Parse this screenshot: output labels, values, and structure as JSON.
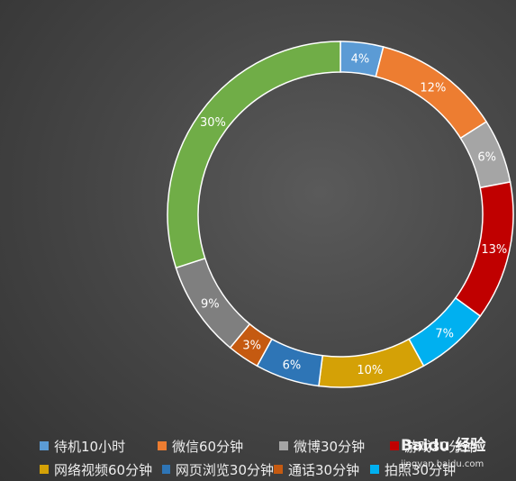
{
  "chart_data": {
    "type": "pie",
    "donut": true,
    "labels": [
      "待机10小时",
      "微信60分钟",
      "微博30分钟",
      "游戏30分钟",
      "拍照30分钟",
      "网络视频60分钟",
      "网页浏览30分钟",
      "通话30分钟",
      "",
      ""
    ],
    "values": [
      4,
      12,
      6,
      13,
      7,
      10,
      6,
      3,
      9,
      30
    ],
    "data_labels": [
      "4%",
      "12%",
      "6%",
      "13%",
      "7%",
      "10%",
      "6%",
      "3%",
      "9%",
      "30%"
    ],
    "colors": [
      "#5b9bd5",
      "#ed7d31",
      "#a5a5a5",
      "#c00000",
      "#00b0f0",
      "#d4a106",
      "#2e75b6",
      "#c55a11",
      "#7f7f7f",
      "#70ad47"
    ],
    "legend_position": "bottom",
    "legend_rows": [
      [
        {
          "label": "待机10小时",
          "color": "#5b9bd5"
        },
        {
          "label": "微信60分钟",
          "color": "#ed7d31"
        },
        {
          "label": "微博30分钟",
          "color": "#a5a5a5"
        },
        {
          "label": "游戏30分钟",
          "color": "#c00000"
        }
      ],
      [
        {
          "label": "网络视频60分钟",
          "color": "#d4a106"
        },
        {
          "label": "网页浏览30分钟",
          "color": "#2e75b6"
        },
        {
          "label": "通话30分钟",
          "color": "#c55a11"
        },
        {
          "label": "拍照30分钟",
          "color": "#00b0f0"
        }
      ]
    ]
  },
  "watermark": {
    "brand": "Baidu 经验",
    "url": "jingyan.baidu.com"
  }
}
